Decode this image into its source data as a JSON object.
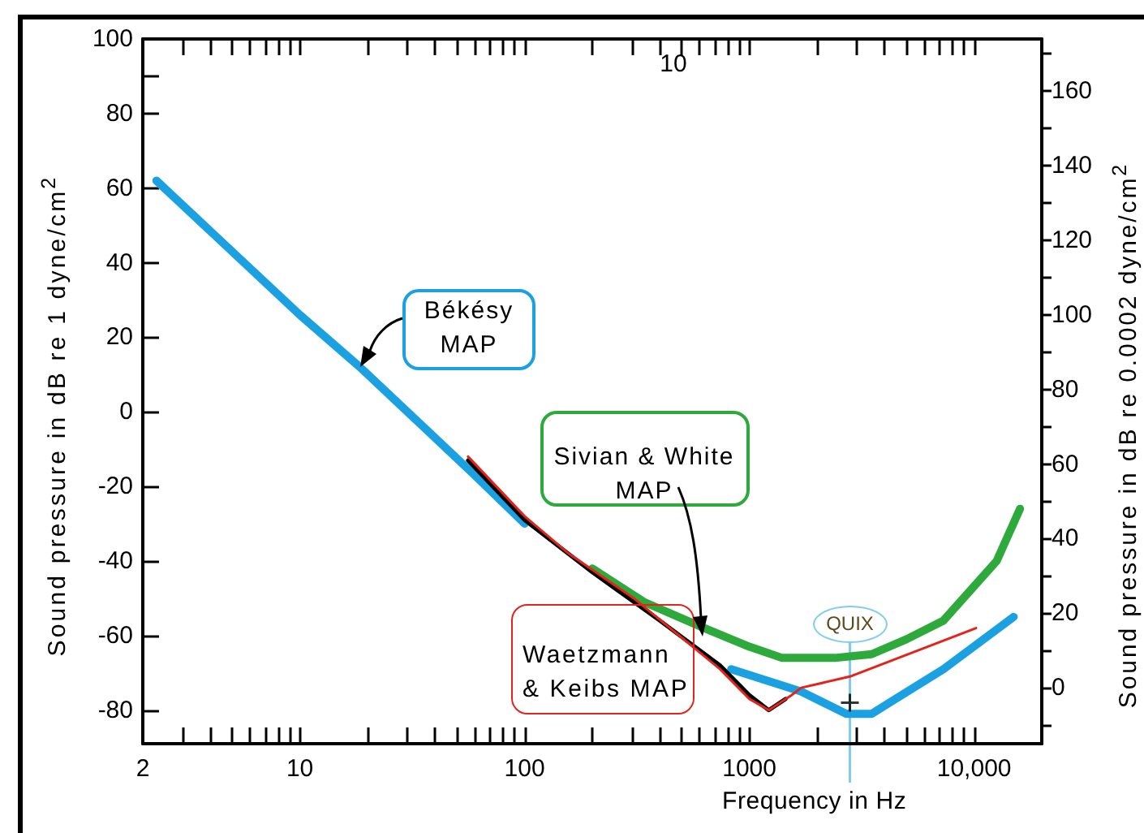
{
  "chart_data": {
    "type": "line",
    "xlabel": "Frequency in Hz",
    "ylabel": "Sound pressure in dB re 1 dyne/cm$^{2}$",
    "y2label": "Sound pressure in dB re 0.0002 dyne/cm$^{2}$",
    "log": "x",
    "marker": "none",
    "xlim": [
      2,
      20000
    ],
    "xticks": [
      2,
      {
        "value": 3,
        "label": null
      },
      {
        "value": 4,
        "label": null
      },
      {
        "value": 5,
        "label": null
      },
      {
        "value": 6,
        "label": null
      },
      {
        "value": 7,
        "label": null
      },
      {
        "value": 8,
        "label": null
      },
      {
        "value": 9,
        "label": null
      },
      10,
      {
        "value": 20,
        "label": null
      },
      {
        "value": 30,
        "label": null
      },
      {
        "value": 40,
        "label": null
      },
      {
        "value": 50,
        "label": null
      },
      {
        "value": 60,
        "label": null
      },
      {
        "value": 70,
        "label": null
      },
      {
        "value": 80,
        "label": null
      },
      {
        "value": 90,
        "label": null
      },
      100,
      {
        "value": 200,
        "label": null
      },
      {
        "value": 300,
        "label": null
      },
      {
        "value": 400,
        "label": null
      },
      {
        "value": 500,
        "label": null
      },
      {
        "value": 600,
        "label": null
      },
      {
        "value": 700,
        "label": null
      },
      {
        "value": 800,
        "label": null
      },
      {
        "value": 900,
        "label": null
      },
      1000,
      {
        "value": 2000,
        "label": null
      },
      {
        "value": 3000,
        "label": null
      },
      {
        "value": 4000,
        "label": null
      },
      {
        "value": 5000,
        "label": null
      },
      {
        "value": 6000,
        "label": null
      },
      {
        "value": 7000,
        "label": null
      },
      {
        "value": 8000,
        "label": null
      },
      {
        "value": 9000,
        "label": null
      },
      {
        "value": 10000,
        "label": "10,000"
      }
    ],
    "ylim": [
      -89,
      100
    ],
    "yticks": [
      -80,
      -60,
      -40,
      -20,
      0,
      20,
      40,
      60,
      80,
      {
        "value": 90,
        "label": null
      },
      100
    ],
    "y2lim": [
      -15,
      174
    ],
    "y2ticks": [
      {
        "value": -10,
        "label": null
      },
      0,
      {
        "value": 10,
        "label": null
      },
      20,
      {
        "value": 30,
        "label": null
      },
      40,
      {
        "value": 50,
        "label": null
      },
      60,
      {
        "value": 70,
        "label": null
      },
      80,
      {
        "value": 90,
        "label": null
      },
      100,
      {
        "value": 110,
        "label": null
      },
      120,
      {
        "value": 130,
        "label": null
      },
      140,
      {
        "value": 150,
        "label": null
      },
      160,
      {
        "value": 170,
        "label": null
      }
    ],
    "series": [
      {
        "name": "Békésy MAP",
        "color": "#1ba1e2",
        "x": [
          2.3,
          10,
          18.5,
          60,
          100,
          300,
          830,
          1700,
          2700,
          3500,
          4200,
          7300,
          15000
        ],
        "values": [
          62,
          26,
          12,
          -17,
          -30,
          null,
          -69,
          -75,
          -81,
          -81,
          -78,
          -69,
          -55
        ]
      },
      {
        "name": "Sivian & White MAP",
        "color": "#2eaa3c",
        "x": [
          200,
          340,
          630,
          1000,
          1400,
          2400,
          3500,
          5000,
          7300,
          12600,
          16000
        ],
        "values": [
          -42,
          -51,
          -58,
          -63,
          -66,
          -66,
          -65,
          -61,
          -56,
          -40,
          -26
        ]
      },
      {
        "color": "#000000",
        "x": [
          56,
          100,
          200,
          400,
          740,
          1000,
          1220,
          1450
        ],
        "values": [
          -13,
          -29,
          -43,
          -56,
          -68,
          -76,
          -80,
          -77
        ]
      },
      {
        "name": "Waetzmann & Keibs MAP",
        "color": "#e3241c",
        "x": [
          56,
          100,
          157,
          306,
          740,
          1000,
          1220,
          1540,
          1700,
          2800,
          10200
        ],
        "values": [
          -12,
          -28,
          -38,
          -50,
          -69,
          -77,
          -80,
          -76,
          -74,
          -71,
          -58
        ]
      },
      {
        "type": "scatter",
        "marker": "cross",
        "color": "#000000",
        "x": [
          2800
        ],
        "values": [
          -78
        ]
      }
    ],
    "ref_lines": [
      {
        "axis": "x",
        "value": 2800,
        "label": "QUIX",
        "color": "#7fcdee"
      }
    ],
    "annotations": [
      "10"
    ]
  }
}
